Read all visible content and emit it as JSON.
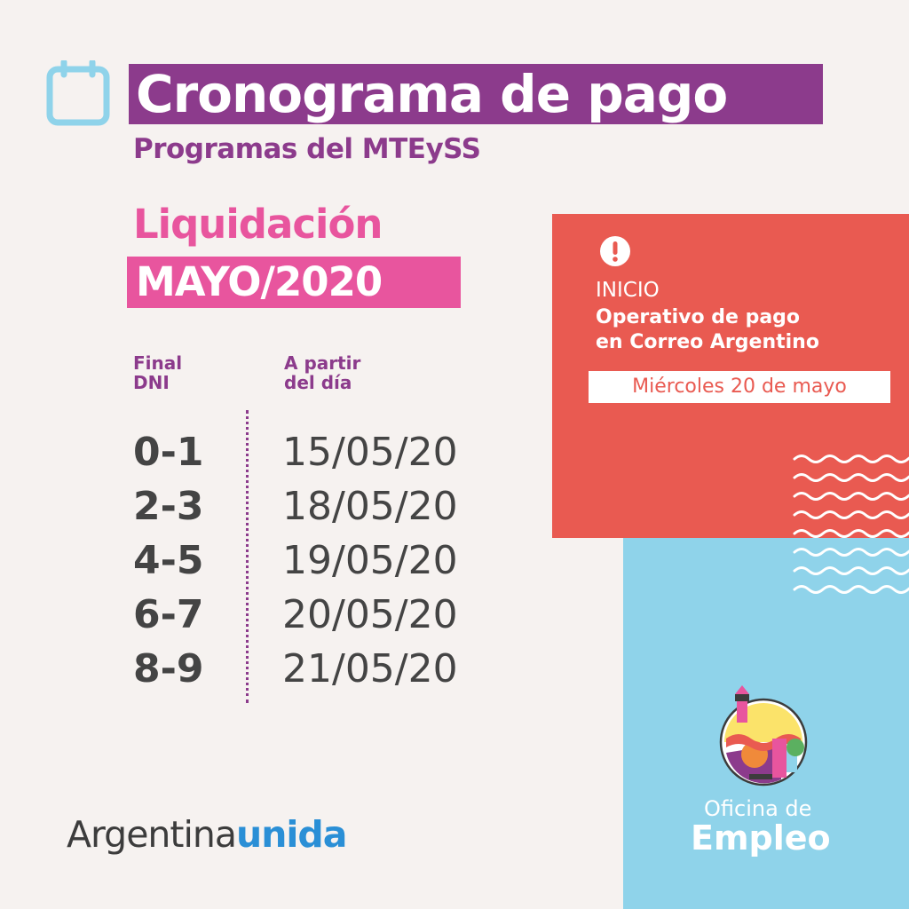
{
  "header": {
    "title": "Cronograma de pago",
    "subtitle": "Programas del MTEySS",
    "calendar_icon": "calendar-icon"
  },
  "liquidacion": {
    "label": "Liquidación",
    "period": "MAYO/2020"
  },
  "schedule": {
    "col_dni": [
      "Final",
      "DNI"
    ],
    "col_date": [
      "A partir",
      "del día"
    ],
    "rows": [
      {
        "dni": "0-1",
        "date": "15/05/20"
      },
      {
        "dni": "2-3",
        "date": "18/05/20"
      },
      {
        "dni": "4-5",
        "date": "19/05/20"
      },
      {
        "dni": "6-7",
        "date": "20/05/20"
      },
      {
        "dni": "8-9",
        "date": "21/05/20"
      }
    ]
  },
  "notice": {
    "icon": "exclamation-icon",
    "inicio": "INICIO",
    "line1": "Operativo de pago",
    "line2": "en Correo Argentino",
    "date": "Miércoles 20 de mayo"
  },
  "office": {
    "line1": "Oficina de",
    "line2": "Empleo"
  },
  "brand": {
    "part1": "Argentina",
    "part2": "unida"
  },
  "colors": {
    "purple": "#8c3b8c",
    "pink": "#e8559e",
    "red": "#e95a51",
    "light_blue": "#8fd3ea",
    "brand_blue": "#2a8fd6"
  }
}
